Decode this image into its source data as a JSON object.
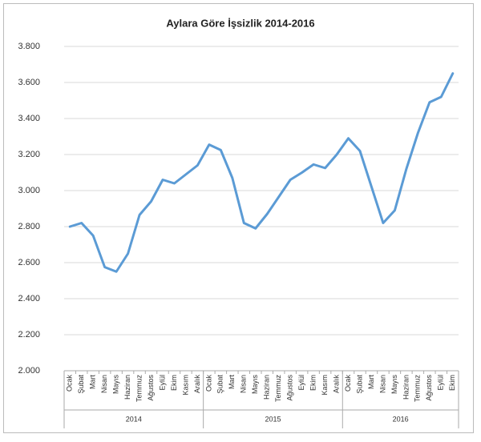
{
  "chart_data": {
    "type": "line",
    "title": "Aylara Göre İşsizlik 2014-2016",
    "categories": [
      "Ocak",
      "Şubat",
      "Mart",
      "Nisan",
      "Mayıs",
      "Haziran",
      "Temmuz",
      "Ağustos",
      "Eylül",
      "Ekim",
      "Kasım",
      "Aralık",
      "Ocak",
      "Şubat",
      "Mart",
      "Nisan",
      "Mayıs",
      "Haziran",
      "Temmuz",
      "Ağustos",
      "Eylül",
      "Ekim",
      "Kasım",
      "Aralık",
      "Ocak",
      "Şubat",
      "Mart",
      "Nisan",
      "Mayıs",
      "Haziran",
      "Temmuz",
      "Ağustos",
      "Eylül",
      "Ekim"
    ],
    "category_groups": [
      {
        "label": "2014",
        "size": 12
      },
      {
        "label": "2015",
        "size": 12
      },
      {
        "label": "2016",
        "size": 10
      }
    ],
    "values": [
      2800,
      2820,
      2750,
      2575,
      2550,
      2650,
      2865,
      2940,
      3060,
      3040,
      3090,
      3140,
      3255,
      3225,
      3070,
      2820,
      2790,
      2870,
      2965,
      3060,
      3100,
      3145,
      3125,
      3200,
      3290,
      3220,
      3020,
      2820,
      2890,
      3120,
      3320,
      3490,
      3520,
      3650
    ],
    "color": "#5b9bd5",
    "ylim": [
      2000,
      3800
    ],
    "yticks": [
      {
        "value": 2000,
        "label": "2.000"
      },
      {
        "value": 2200,
        "label": "2.200"
      },
      {
        "value": 2400,
        "label": "2.400"
      },
      {
        "value": 2600,
        "label": "2.600"
      },
      {
        "value": 2800,
        "label": "2.800"
      },
      {
        "value": 3000,
        "label": "3.000"
      },
      {
        "value": 3200,
        "label": "3.200"
      },
      {
        "value": 3400,
        "label": "3.400"
      },
      {
        "value": 3600,
        "label": "3.600"
      },
      {
        "value": 3800,
        "label": "3.800"
      }
    ],
    "grid": true
  }
}
